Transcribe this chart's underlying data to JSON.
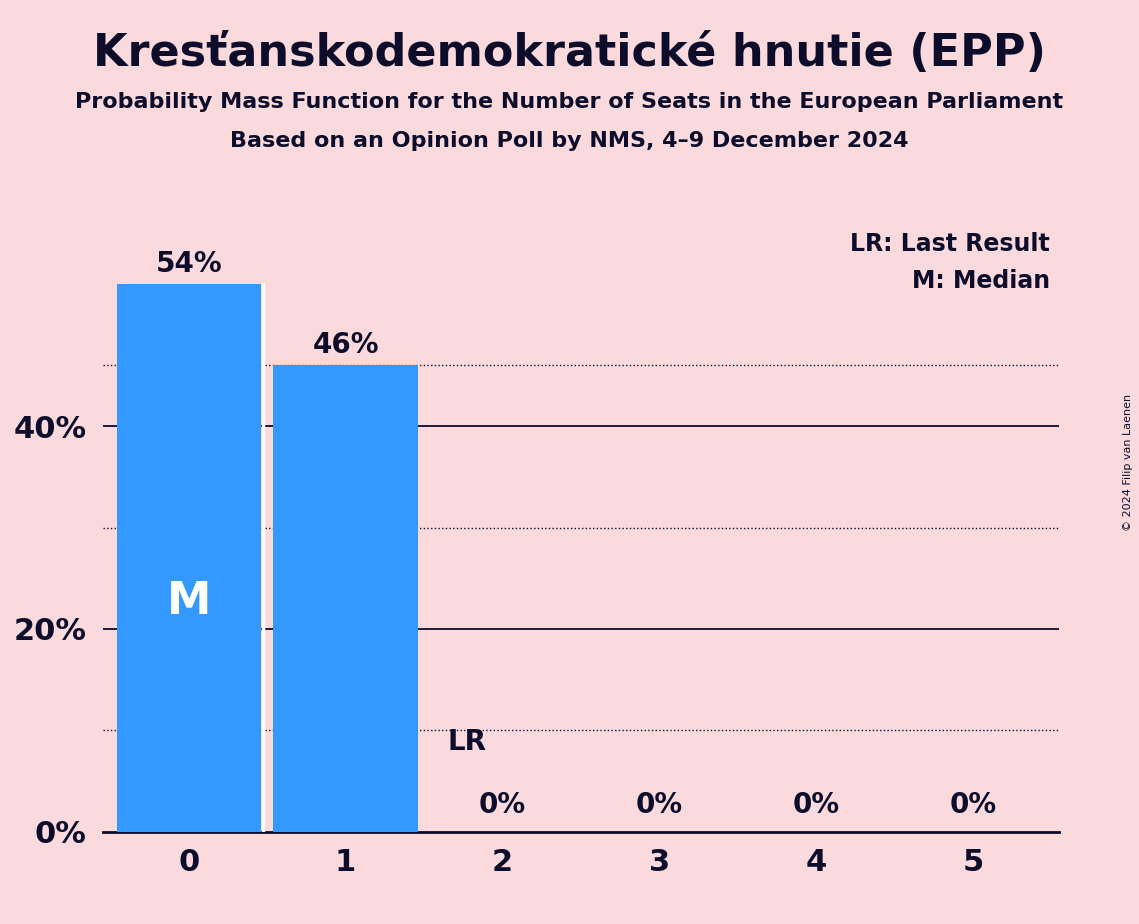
{
  "title": "Kresťanskodemokratické hnutie (EPP)",
  "subtitle1": "Probability Mass Function for the Number of Seats in the European Parliament",
  "subtitle2": "Based on an Opinion Poll by NMS, 4–9 December 2024",
  "copyright": "© 2024 Filip van Laenen",
  "categories": [
    0,
    1,
    2,
    3,
    4,
    5
  ],
  "values": [
    0.54,
    0.46,
    0.0,
    0.0,
    0.0,
    0.0
  ],
  "bar_color": "#3399FF",
  "background_color": "#FADADD",
  "text_color": "#0D0D2B",
  "median_seat": 0,
  "lr_seat": 2,
  "yticks": [
    0.0,
    0.2,
    0.4
  ],
  "ytick_labels": [
    "0%",
    "20%",
    "40%"
  ],
  "ylim": [
    0,
    0.62
  ],
  "solid_lines": [
    0.2,
    0.4
  ],
  "dotted_lines": [
    0.46,
    0.3,
    0.1
  ],
  "legend_lr": "LR: Last Result",
  "legend_m": "M: Median"
}
